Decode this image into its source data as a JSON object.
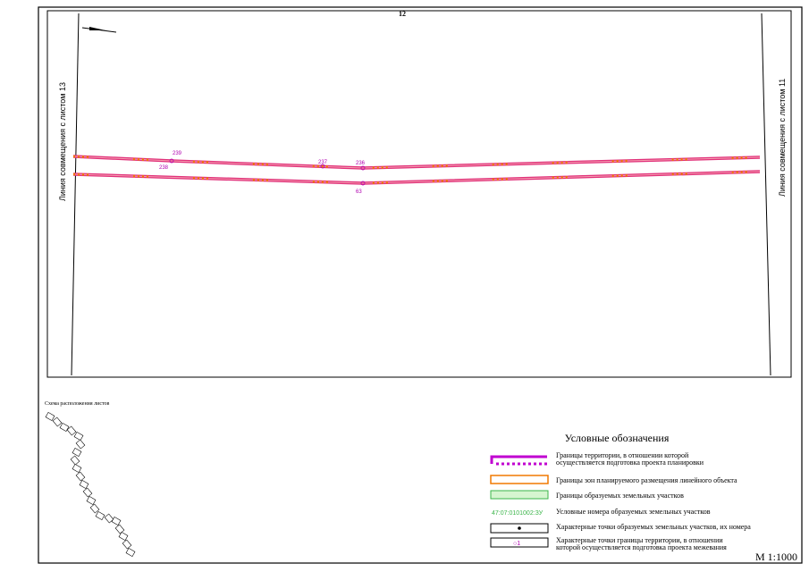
{
  "sheet_number": "12",
  "side_labels": {
    "left": "Линия совмещения с листом 13",
    "right": "Линия совмещения с листом 11"
  },
  "points": [
    {
      "label": "239"
    },
    {
      "label": "238"
    },
    {
      "label": "237"
    },
    {
      "label": "236"
    },
    {
      "label": "63"
    }
  ],
  "scheme": {
    "title": "Схема расположения листов"
  },
  "legend": {
    "title": "Условные обозначения",
    "items": [
      {
        "text": "Границы территории, в отношении которой осуществляется подготовка проекта планировки"
      },
      {
        "text": "Границы зон планируемого размещения линейного объекта"
      },
      {
        "text": "Границы образуемых земельных участков"
      },
      {
        "sample": "47:07:0101002:ЗУ",
        "text": "Условные номера образуемых земельных участков"
      },
      {
        "text": "Характерные точки образуемых земельных участков, их номера"
      },
      {
        "sample": "○1",
        "text": "Характерные точки границы территории, в отношении которой осуществляется подготовка проекта межевания"
      }
    ]
  },
  "scale": "М 1:1000"
}
